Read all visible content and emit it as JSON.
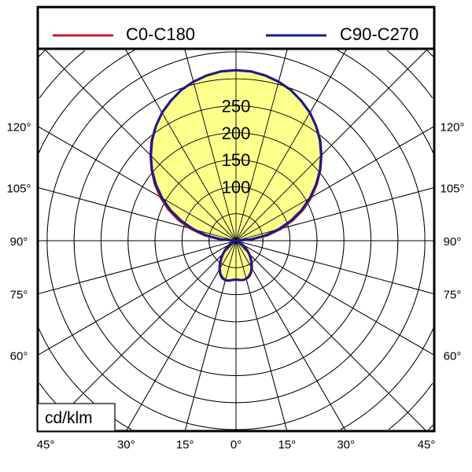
{
  "chart_data": {
    "type": "polar",
    "unit_label": "cd/klm",
    "radial_ticks": [
      100,
      150,
      200,
      250
    ],
    "radial_grid_step": 50,
    "radial_max": 500,
    "angle_grid_step_deg": 15,
    "left_angle_labels": [
      "120°",
      "105°",
      "90°",
      "75°",
      "60°"
    ],
    "right_angle_labels": [
      "120°",
      "105°",
      "90°",
      "75°",
      "60°"
    ],
    "side_angle_values": [
      120,
      105,
      90,
      75,
      60
    ],
    "bottom_angle_labels": [
      "45°",
      "30°",
      "15°",
      "0°",
      "15°",
      "30°",
      "45°"
    ],
    "bottom_angle_values": [
      -45,
      -30,
      -15,
      0,
      15,
      30,
      45
    ],
    "fill_color": "#FFFF8C",
    "gamma_deg": [
      0,
      5,
      10,
      15,
      20,
      25,
      30,
      35,
      40,
      45,
      50,
      55,
      60,
      65,
      70,
      75,
      80,
      85,
      90,
      95,
      100,
      105,
      110,
      115,
      120,
      125,
      130,
      135,
      140,
      145,
      150,
      155,
      160,
      165,
      170,
      175,
      180
    ],
    "series": [
      {
        "name": "C0-C180",
        "color": "#C0202A",
        "right": [
          72,
          73,
          74,
          73,
          71,
          66,
          59,
          51,
          43,
          35,
          27,
          20,
          14,
          9,
          5,
          3,
          1.5,
          0.5,
          0,
          30,
          60,
          87,
          113,
          138,
          161,
          183,
          204,
          224,
          243,
          259,
          274,
          286,
          297,
          305,
          311,
          315,
          316
        ],
        "left": [
          72,
          73,
          75,
          75,
          73,
          68,
          60,
          51,
          42,
          33,
          25,
          18,
          12,
          8,
          5,
          3,
          1.5,
          0.5,
          0,
          30,
          60,
          88,
          114,
          139,
          162,
          184,
          204,
          224,
          243,
          259,
          274,
          286,
          297,
          305,
          311,
          315,
          316
        ]
      },
      {
        "name": "C90-C270",
        "color": "#1A1A8C",
        "right": [
          72,
          73,
          74,
          73,
          70,
          65,
          58,
          50,
          42,
          34,
          26,
          19,
          13,
          8,
          5,
          3,
          1.5,
          0.5,
          0,
          27,
          55,
          82,
          108,
          134,
          158,
          181,
          203,
          223,
          242,
          259,
          274,
          286,
          297,
          305,
          311,
          315,
          316
        ],
        "left": [
          72,
          73,
          75,
          76,
          74,
          69,
          61,
          52,
          43,
          34,
          26,
          19,
          13,
          8,
          5,
          3,
          1.5,
          0.5,
          0,
          27,
          55,
          82,
          108,
          134,
          158,
          181,
          203,
          223,
          242,
          259,
          274,
          286,
          297,
          305,
          311,
          315,
          316
        ]
      }
    ]
  }
}
